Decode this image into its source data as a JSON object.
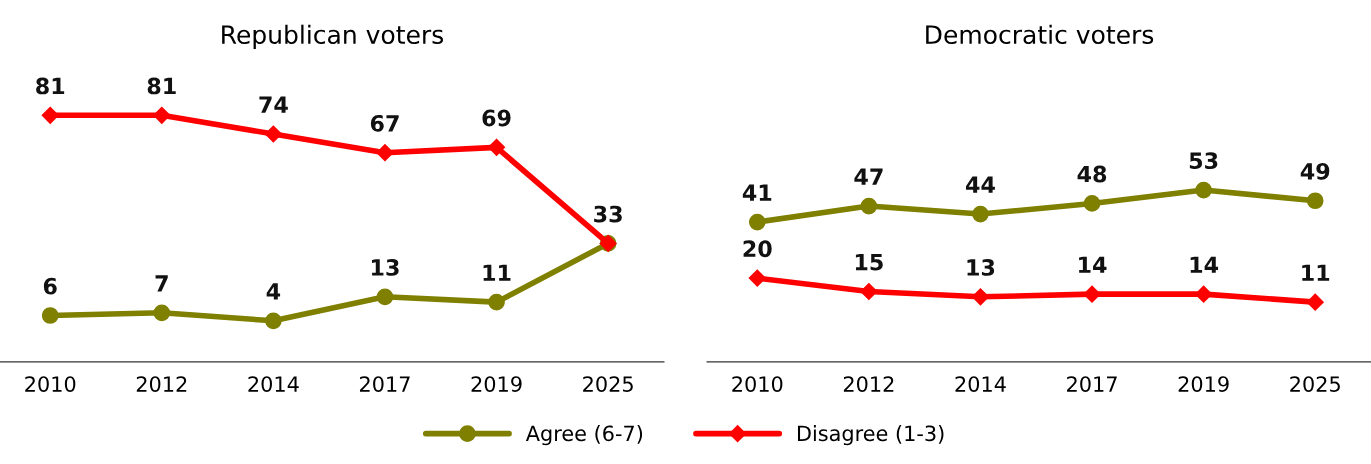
{
  "chart_data": [
    {
      "type": "line",
      "title": "Republican voters",
      "categories": [
        "2010",
        "2012",
        "2014",
        "2017",
        "2019",
        "2025"
      ],
      "tick_labels": "x",
      "grid": false,
      "legend": "bottom",
      "data_labels": true,
      "line_style": "solid",
      "series": [
        {
          "name": "Agree (6-7)",
          "color": "#7f7f00",
          "marker": "circle",
          "values": [
            6,
            7,
            4,
            13,
            11,
            33
          ]
        },
        {
          "name": "Disagree (1-3)",
          "color": "#ff0000",
          "marker": "diamond",
          "values": [
            81,
            81,
            74,
            67,
            69,
            33
          ],
          "value_labels": [
            "81",
            "81",
            "74",
            "67",
            "69",
            null
          ]
        }
      ]
    },
    {
      "type": "line",
      "title": "Democratic voters",
      "categories": [
        "2010",
        "2012",
        "2014",
        "2017",
        "2019",
        "2025"
      ],
      "tick_labels": "x",
      "grid": false,
      "legend": "bottom",
      "data_labels": true,
      "line_style": "solid",
      "series": [
        {
          "name": "Agree (6-7)",
          "color": "#7f7f00",
          "marker": "circle",
          "values": [
            41,
            47,
            44,
            48,
            53,
            49
          ]
        },
        {
          "name": "Disagree (1-3)",
          "color": "#ff0000",
          "marker": "diamond",
          "values": [
            20,
            15,
            13,
            14,
            14,
            11
          ]
        }
      ]
    }
  ]
}
